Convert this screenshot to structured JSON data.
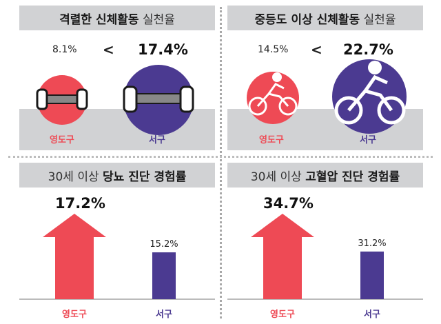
{
  "colors": {
    "yeongdo": "#ee4a55",
    "seogu": "#4b3a91",
    "panel_gray": "#d1d2d4"
  },
  "panels": {
    "strength": {
      "title_bold": "격렬한 신체활동",
      "title_light": "실천율",
      "left_value": "8.1%",
      "compare": "<",
      "right_value": "17.4%",
      "left_label": "영도구",
      "right_label": "서구",
      "icon": "dumbbell-icon"
    },
    "moderate": {
      "title_bold": "중등도 이상 신체활동",
      "title_light": "실천율",
      "left_value": "14.5%",
      "compare": "<",
      "right_value": "22.7%",
      "left_label": "영도구",
      "right_label": "서구",
      "icon": "cyclist-icon"
    },
    "diabetes": {
      "title_light": "30세 이상",
      "title_bold": "당뇨 진단 경험률",
      "left_value": "17.2%",
      "right_value": "15.2%",
      "left_label": "영도구",
      "right_label": "서구"
    },
    "hypertension": {
      "title_light": "30세 이상",
      "title_bold": "고혈압 진단 경험률",
      "left_value": "34.7%",
      "right_value": "31.2%",
      "left_label": "영도구",
      "right_label": "서구"
    }
  },
  "chart_data": [
    {
      "type": "bar",
      "title": "격렬한 신체활동 실천율",
      "categories": [
        "영도구",
        "서구"
      ],
      "values": [
        8.1,
        17.4
      ],
      "unit": "%"
    },
    {
      "type": "bar",
      "title": "중등도 이상 신체활동 실천율",
      "categories": [
        "영도구",
        "서구"
      ],
      "values": [
        14.5,
        22.7
      ],
      "unit": "%"
    },
    {
      "type": "bar",
      "title": "30세 이상 당뇨 진단 경험률",
      "categories": [
        "영도구",
        "서구"
      ],
      "values": [
        17.2,
        15.2
      ],
      "unit": "%"
    },
    {
      "type": "bar",
      "title": "30세 이상 고혈압 진단 경험률",
      "categories": [
        "영도구",
        "서구"
      ],
      "values": [
        34.7,
        31.2
      ],
      "unit": "%"
    }
  ]
}
